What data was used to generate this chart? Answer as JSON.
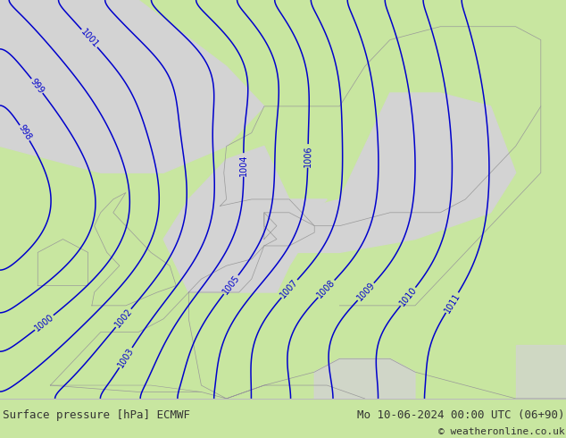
{
  "title_left": "Surface pressure [hPa] ECMWF",
  "title_right": "Mo 10-06-2024 00:00 UTC (06+90)",
  "copyright": "© weatheronline.co.uk",
  "bg_color": "#c8e6a0",
  "sea_color": "#d3d3d3",
  "contour_color": "#0000cc",
  "label_color": "#0000cc",
  "border_color": "#999999",
  "bottom_bar_color": "#ffffff",
  "bottom_text_color": "#333333",
  "figsize": [
    6.34,
    4.9
  ],
  "dpi": 100
}
